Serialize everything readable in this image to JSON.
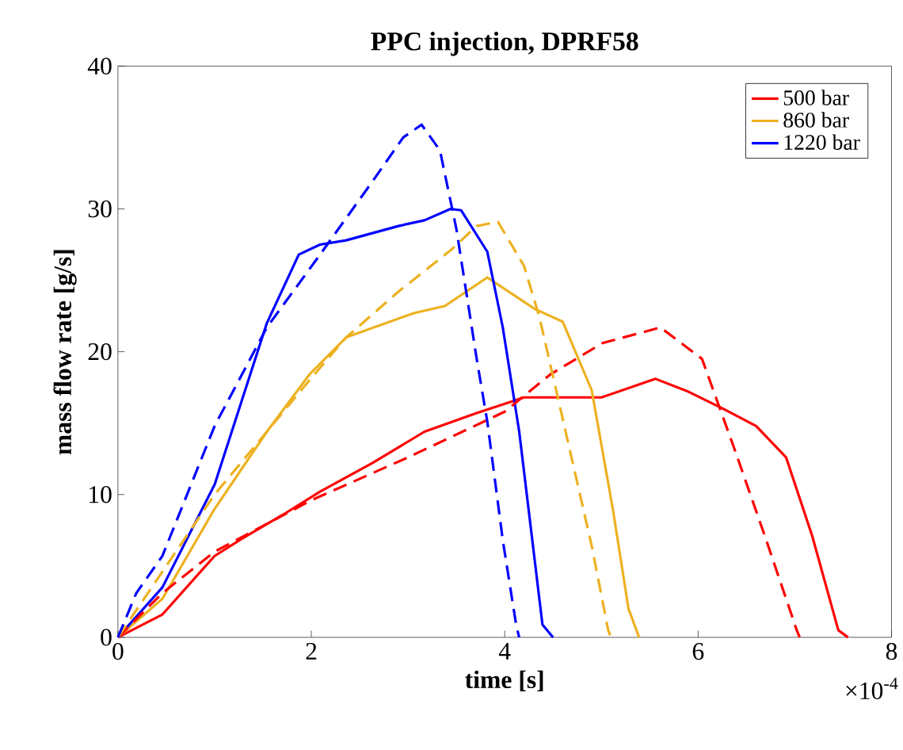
{
  "chart_data": {
    "type": "line",
    "title": "PPC injection, DPRF58",
    "xlabel": "time [s]",
    "ylabel": "mass flow rate [g/s]",
    "xlim": [
      0,
      8
    ],
    "ylim": [
      0,
      40
    ],
    "xticks": [
      0,
      2,
      4,
      6,
      8
    ],
    "yticks": [
      0,
      10,
      20,
      30,
      40
    ],
    "legend": "top right",
    "annotations": [
      "×10$^{-4}$"
    ],
    "series": [
      {
        "name": "500 bar",
        "color": "#ff0000",
        "line_style": "solid",
        "x": [
          0,
          0.46,
          1.0,
          1.28,
          1.71,
          2.09,
          2.63,
          3.17,
          3.71,
          4.2,
          5.0,
          5.56,
          5.9,
          6.26,
          6.6,
          6.91,
          7.18,
          7.45,
          7.55
        ],
        "values": [
          0,
          1.6,
          5.7,
          6.9,
          8.6,
          10.2,
          12.2,
          14.4,
          15.7,
          16.8,
          16.8,
          18.1,
          17.2,
          16.0,
          14.8,
          12.6,
          7.1,
          0.5,
          0
        ]
      },
      {
        "name": "860 bar",
        "color": "#edb120",
        "line_style": "solid",
        "x": [
          0,
          0.46,
          1.0,
          1.54,
          1.98,
          2.36,
          3.06,
          3.38,
          3.82,
          4.31,
          4.6,
          4.9,
          5.12,
          5.28,
          5.39
        ],
        "values": [
          0,
          2.7,
          9.0,
          14.4,
          18.4,
          21.0,
          22.7,
          23.2,
          25.2,
          23.0,
          22.1,
          17.3,
          8.9,
          2.0,
          0
        ]
      },
      {
        "name": "1220 bar",
        "color": "#0000ff",
        "line_style": "solid",
        "x": [
          0,
          0.46,
          1.0,
          1.54,
          1.87,
          2.09,
          2.36,
          2.9,
          3.17,
          3.44,
          3.55,
          3.82,
          3.98,
          4.15,
          4.28,
          4.39,
          4.5
        ],
        "values": [
          0,
          3.5,
          10.7,
          22.0,
          26.8,
          27.5,
          27.8,
          28.8,
          29.2,
          30.0,
          29.9,
          27.0,
          21.7,
          14.4,
          7.1,
          0.9,
          0
        ]
      },
      {
        "color": "#ff0000",
        "line_style": "dashed",
        "x": [
          0,
          0.46,
          1.0,
          1.5,
          2.0,
          3.0,
          4.0,
          4.47,
          5.01,
          5.61,
          6.04,
          6.37,
          6.69,
          7.02,
          7.05
        ],
        "values": [
          0,
          3.1,
          6.0,
          7.8,
          9.6,
          12.6,
          15.8,
          18.4,
          20.6,
          21.7,
          19.5,
          13.3,
          7.1,
          0.5,
          0
        ]
      },
      {
        "color": "#edb120",
        "line_style": "dashed",
        "x": [
          0,
          0.46,
          1.0,
          1.54,
          1.98,
          2.36,
          2.9,
          3.44,
          3.71,
          3.93,
          4.2,
          4.36,
          4.63,
          4.9,
          5.07,
          5.1
        ],
        "values": [
          0,
          4.6,
          10.0,
          14.4,
          18.0,
          21.0,
          24.2,
          27.1,
          28.8,
          29.1,
          26.0,
          22.4,
          14.4,
          6.4,
          0.5,
          0
        ]
      },
      {
        "color": "#0000ff",
        "line_style": "dashed",
        "x": [
          0,
          0.19,
          0.46,
          1.0,
          1.54,
          2.09,
          2.63,
          2.95,
          3.14,
          3.33,
          3.5,
          3.71,
          3.82,
          3.98,
          4.12,
          4.15
        ],
        "values": [
          0,
          3.1,
          5.7,
          14.8,
          21.7,
          26.8,
          31.9,
          35.0,
          35.9,
          34.1,
          28.6,
          19.5,
          15.1,
          6.8,
          0.8,
          0
        ]
      }
    ]
  }
}
